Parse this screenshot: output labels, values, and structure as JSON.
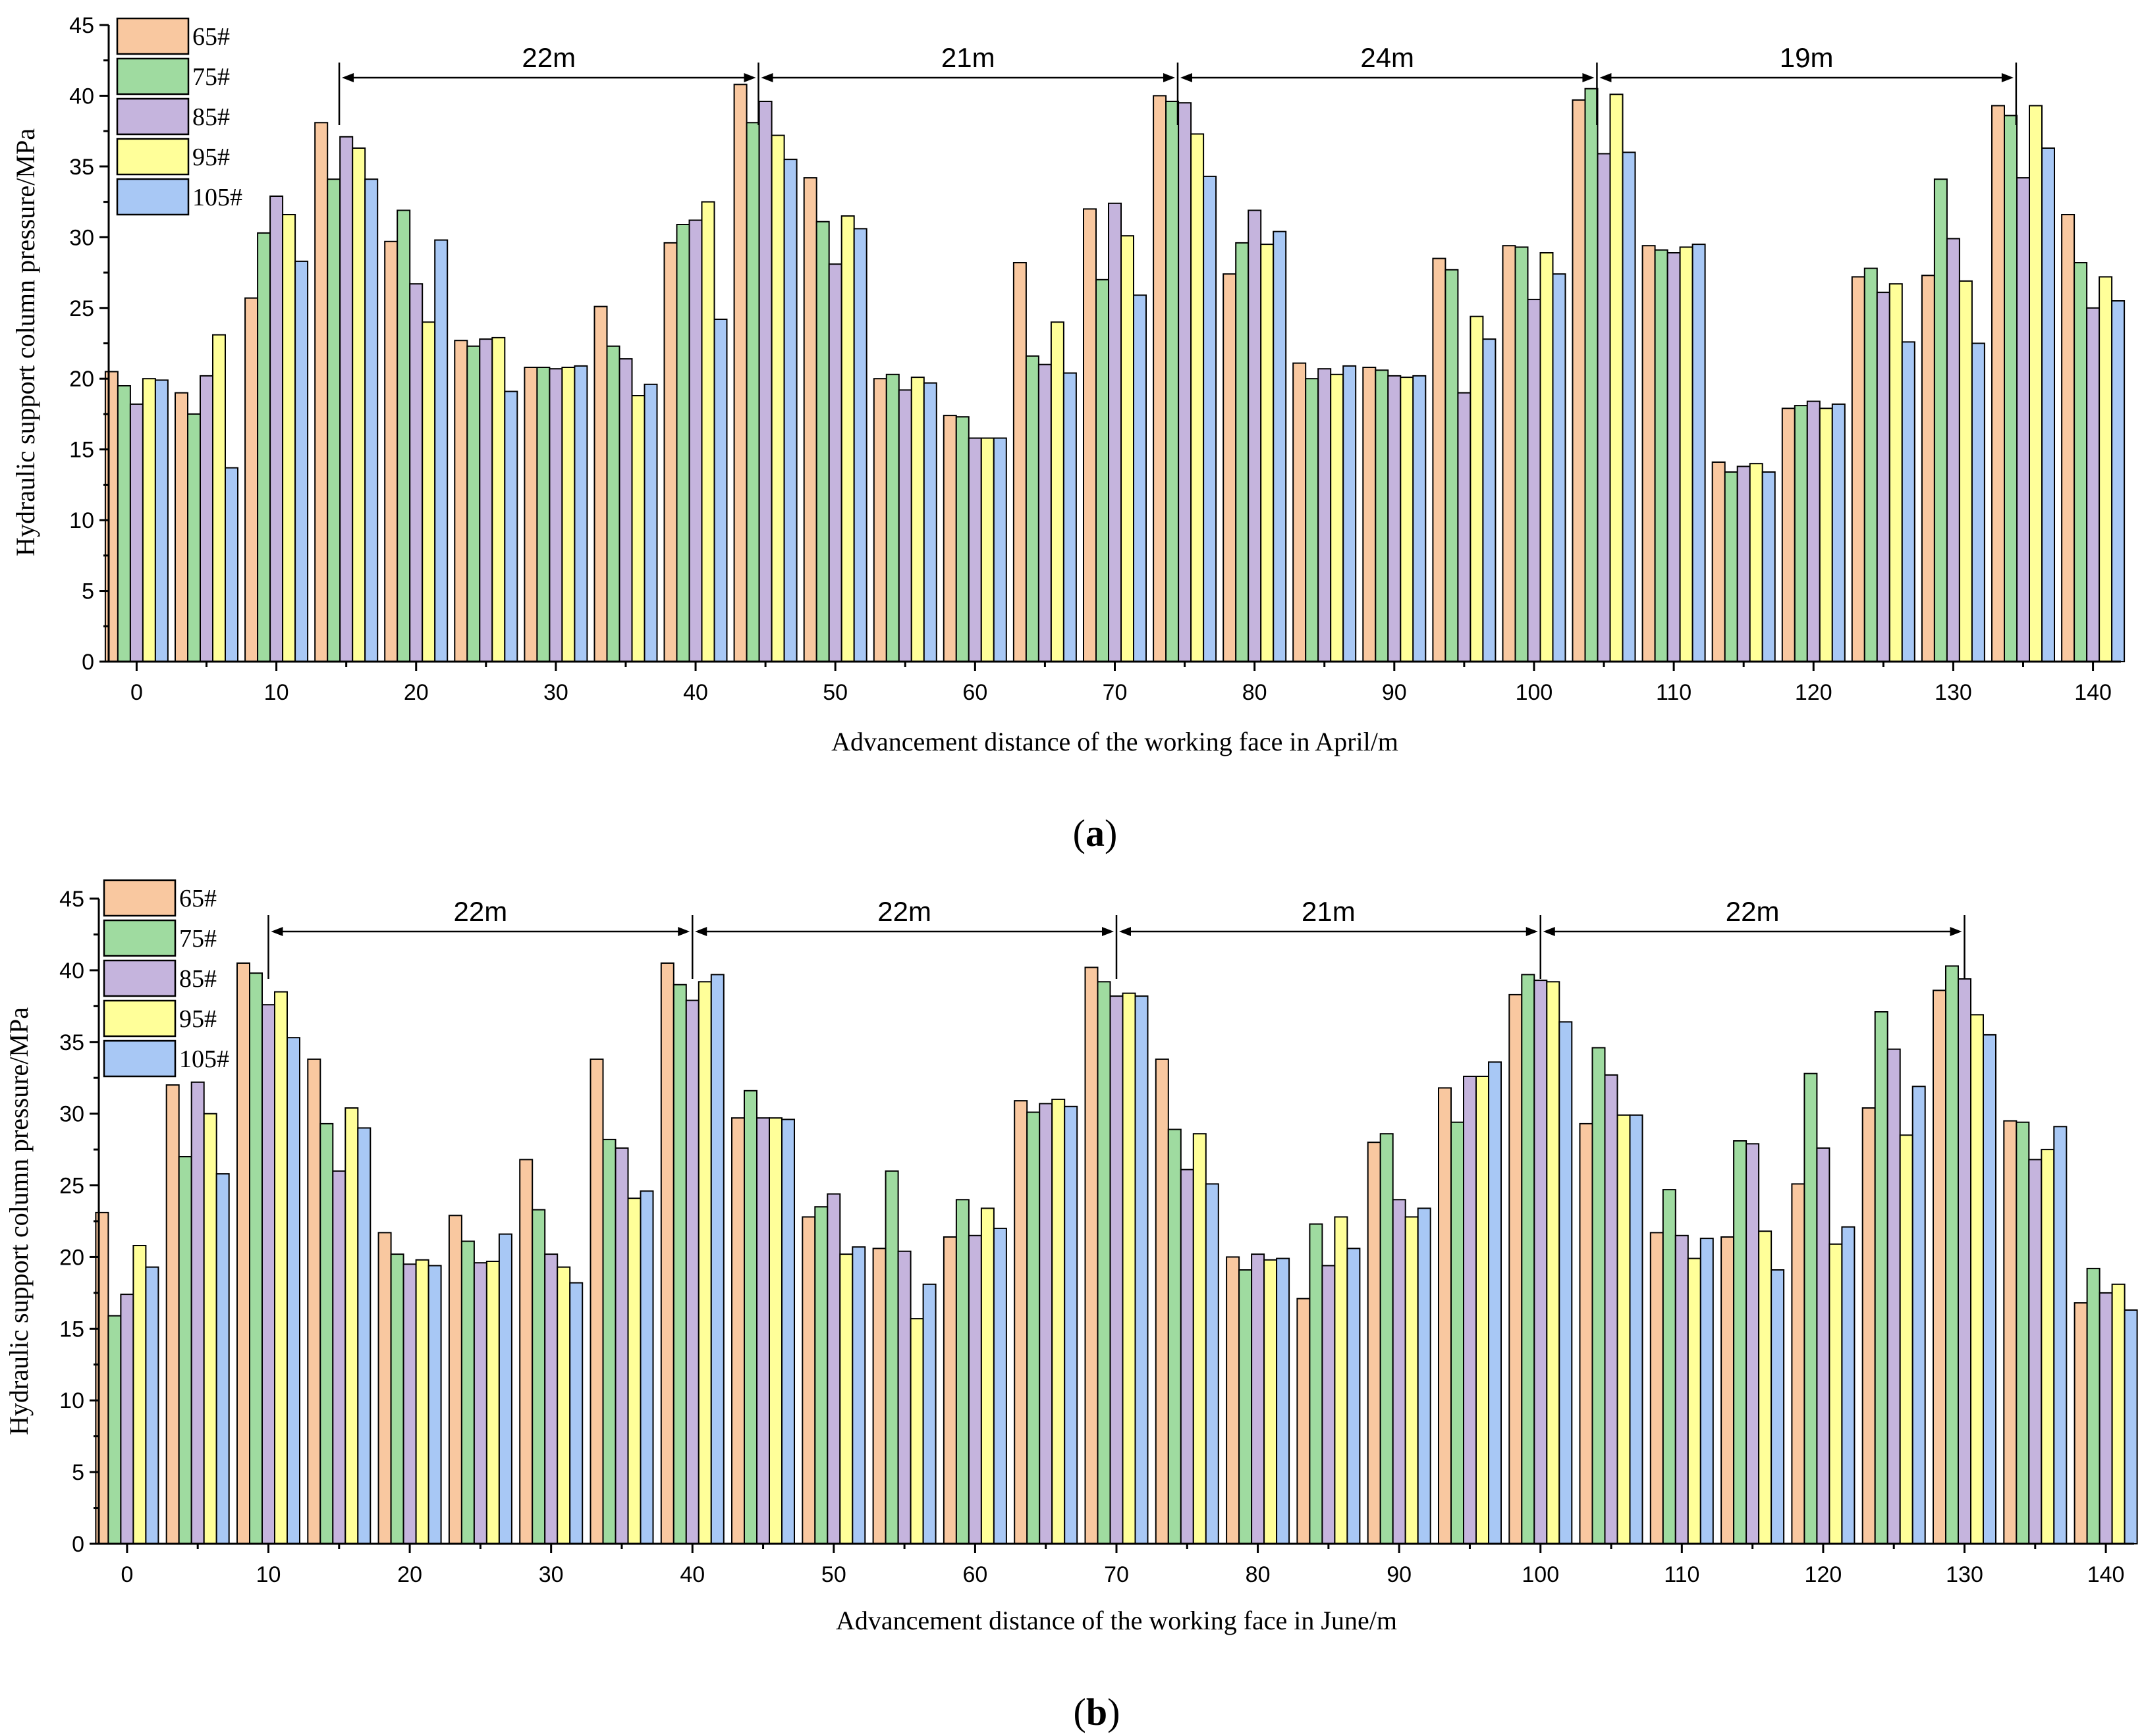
{
  "series_names": [
    "65#",
    "75#",
    "85#",
    "95#",
    "105#"
  ],
  "colors": {
    "65#": "#f9c8a0",
    "75#": "#9fdba0",
    "85#": "#c5b4dd",
    "95#": "#ffff99",
    "105#": "#a8c8f5"
  },
  "chart_data": [
    {
      "type": "bar",
      "panel": "(a)",
      "panel_letter": "a",
      "xlabel": "Advancement distance of the working face in April/m",
      "ylabel": "Hydraulic support column pressure/MPa",
      "ylim": [
        0,
        45
      ],
      "yticks": [
        0,
        5,
        10,
        15,
        20,
        25,
        30,
        35,
        40,
        45
      ],
      "xlim": [
        -2,
        142
      ],
      "xticks": [
        0,
        10,
        20,
        30,
        40,
        50,
        60,
        70,
        80,
        90,
        100,
        110,
        120,
        130,
        140
      ],
      "legend_position": "top-left",
      "x": [
        0,
        5,
        10,
        15,
        20,
        25,
        30,
        35,
        40,
        45,
        50,
        55,
        60,
        65,
        70,
        75,
        80,
        85,
        90,
        95,
        100,
        105,
        110,
        115,
        120,
        125,
        130,
        135,
        140
      ],
      "series": [
        {
          "name": "65#",
          "values": [
            20.5,
            19.0,
            25.7,
            38.1,
            29.7,
            22.7,
            20.8,
            25.1,
            29.6,
            40.8,
            34.2,
            20.0,
            17.4,
            28.2,
            32.0,
            40.0,
            27.4,
            21.1,
            20.8,
            28.5,
            29.4,
            39.7,
            29.4,
            14.1,
            17.9,
            27.2,
            27.3,
            39.3,
            31.6
          ]
        },
        {
          "name": "75#",
          "values": [
            19.5,
            17.5,
            30.3,
            34.1,
            31.9,
            22.3,
            20.8,
            22.3,
            30.9,
            38.1,
            31.1,
            20.3,
            17.3,
            21.6,
            27.0,
            39.6,
            29.6,
            20.0,
            20.6,
            27.7,
            29.3,
            40.5,
            29.1,
            13.4,
            18.1,
            27.8,
            34.1,
            38.6,
            28.2
          ]
        },
        {
          "name": "85#",
          "values": [
            18.2,
            20.2,
            32.9,
            37.1,
            26.7,
            22.8,
            20.7,
            21.4,
            31.2,
            39.6,
            28.1,
            19.2,
            15.8,
            21.0,
            32.4,
            39.5,
            31.9,
            20.7,
            20.2,
            19.0,
            25.6,
            35.9,
            28.9,
            13.8,
            18.4,
            26.1,
            29.9,
            34.2,
            25.0
          ]
        },
        {
          "name": "95#",
          "values": [
            20.0,
            23.1,
            31.6,
            36.3,
            24.0,
            22.9,
            20.8,
            18.8,
            32.5,
            37.2,
            31.5,
            20.1,
            15.8,
            24.0,
            30.1,
            37.3,
            29.5,
            20.3,
            20.1,
            24.4,
            28.9,
            40.1,
            29.3,
            14.0,
            17.9,
            26.7,
            26.9,
            39.3,
            27.2
          ]
        },
        {
          "name": "105#",
          "values": [
            19.9,
            13.7,
            28.3,
            34.1,
            29.8,
            19.1,
            20.9,
            19.6,
            24.2,
            35.5,
            30.6,
            19.7,
            15.8,
            20.4,
            25.9,
            34.3,
            30.4,
            20.9,
            20.2,
            22.8,
            27.4,
            36.0,
            29.5,
            13.4,
            18.2,
            22.6,
            22.5,
            36.3,
            25.5
          ]
        }
      ],
      "intervals": [
        {
          "label": "22m",
          "from": 14.5,
          "to": 44.5
        },
        {
          "label": "21m",
          "from": 44.5,
          "to": 74.5
        },
        {
          "label": "24m",
          "from": 74.5,
          "to": 104.5
        },
        {
          "label": "19m",
          "from": 104.5,
          "to": 134.5
        }
      ],
      "markers": [
        14.5,
        44.5,
        74.5,
        104.5,
        134.5
      ]
    },
    {
      "type": "bar",
      "panel": "(b)",
      "panel_letter": "b",
      "xlabel": "Advancement distance of the working face in June/m",
      "ylabel": "Hydraulic support column pressure/MPa",
      "ylim": [
        0,
        45
      ],
      "yticks": [
        0,
        5,
        10,
        15,
        20,
        25,
        30,
        35,
        40,
        45
      ],
      "xlim": [
        -2,
        142
      ],
      "xticks": [
        0,
        10,
        20,
        30,
        40,
        50,
        60,
        70,
        80,
        90,
        100,
        110,
        120,
        130,
        140
      ],
      "legend_position": "top-left",
      "x": [
        0,
        5,
        10,
        15,
        20,
        25,
        30,
        35,
        40,
        45,
        50,
        55,
        60,
        65,
        70,
        75,
        80,
        85,
        90,
        95,
        100,
        105,
        110,
        115,
        120,
        125,
        130,
        135,
        140
      ],
      "series": [
        {
          "name": "65#",
          "values": [
            23.1,
            32.0,
            40.5,
            33.8,
            21.7,
            22.9,
            26.8,
            33.8,
            40.5,
            29.7,
            22.8,
            20.6,
            21.4,
            30.9,
            40.2,
            33.8,
            20.0,
            17.1,
            28.0,
            31.8,
            38.3,
            29.3,
            21.7,
            21.4,
            25.1,
            30.4,
            38.6,
            29.5,
            16.8
          ]
        },
        {
          "name": "75#",
          "values": [
            15.9,
            27.0,
            39.8,
            29.3,
            20.2,
            21.1,
            23.3,
            28.2,
            39.0,
            31.6,
            23.5,
            26.0,
            24.0,
            30.1,
            39.2,
            28.9,
            19.1,
            22.3,
            28.6,
            29.4,
            39.7,
            34.6,
            24.7,
            28.1,
            32.8,
            37.1,
            40.3,
            29.4,
            19.2
          ]
        },
        {
          "name": "85#",
          "values": [
            17.4,
            32.2,
            37.6,
            26.0,
            19.5,
            19.6,
            20.2,
            27.6,
            37.9,
            29.7,
            24.4,
            20.4,
            21.5,
            30.7,
            38.2,
            26.1,
            20.2,
            19.4,
            24.0,
            32.6,
            39.3,
            32.7,
            21.5,
            27.9,
            27.6,
            34.5,
            39.4,
            26.8,
            17.5
          ]
        },
        {
          "name": "95#",
          "values": [
            20.8,
            30.0,
            38.5,
            30.4,
            19.8,
            19.7,
            19.3,
            24.1,
            39.2,
            29.7,
            20.2,
            15.7,
            23.4,
            31.0,
            38.4,
            28.6,
            19.8,
            22.8,
            22.8,
            32.6,
            39.2,
            29.9,
            19.9,
            21.8,
            20.9,
            28.5,
            36.9,
            27.5,
            18.1
          ]
        },
        {
          "name": "105#",
          "values": [
            19.3,
            25.8,
            35.3,
            29.0,
            19.4,
            21.6,
            18.2,
            24.6,
            39.7,
            29.6,
            20.7,
            18.1,
            22.0,
            30.5,
            38.2,
            25.1,
            19.9,
            20.6,
            23.4,
            33.6,
            36.4,
            29.9,
            21.3,
            19.1,
            22.1,
            31.9,
            35.5,
            29.1,
            16.3
          ]
        }
      ],
      "intervals": [
        {
          "label": "22m",
          "from": 10,
          "to": 40
        },
        {
          "label": "22m",
          "from": 40,
          "to": 70
        },
        {
          "label": "21m",
          "from": 70,
          "to": 100
        },
        {
          "label": "22m",
          "from": 100,
          "to": 130
        }
      ],
      "markers": [
        10,
        40,
        70,
        100,
        130
      ]
    }
  ]
}
